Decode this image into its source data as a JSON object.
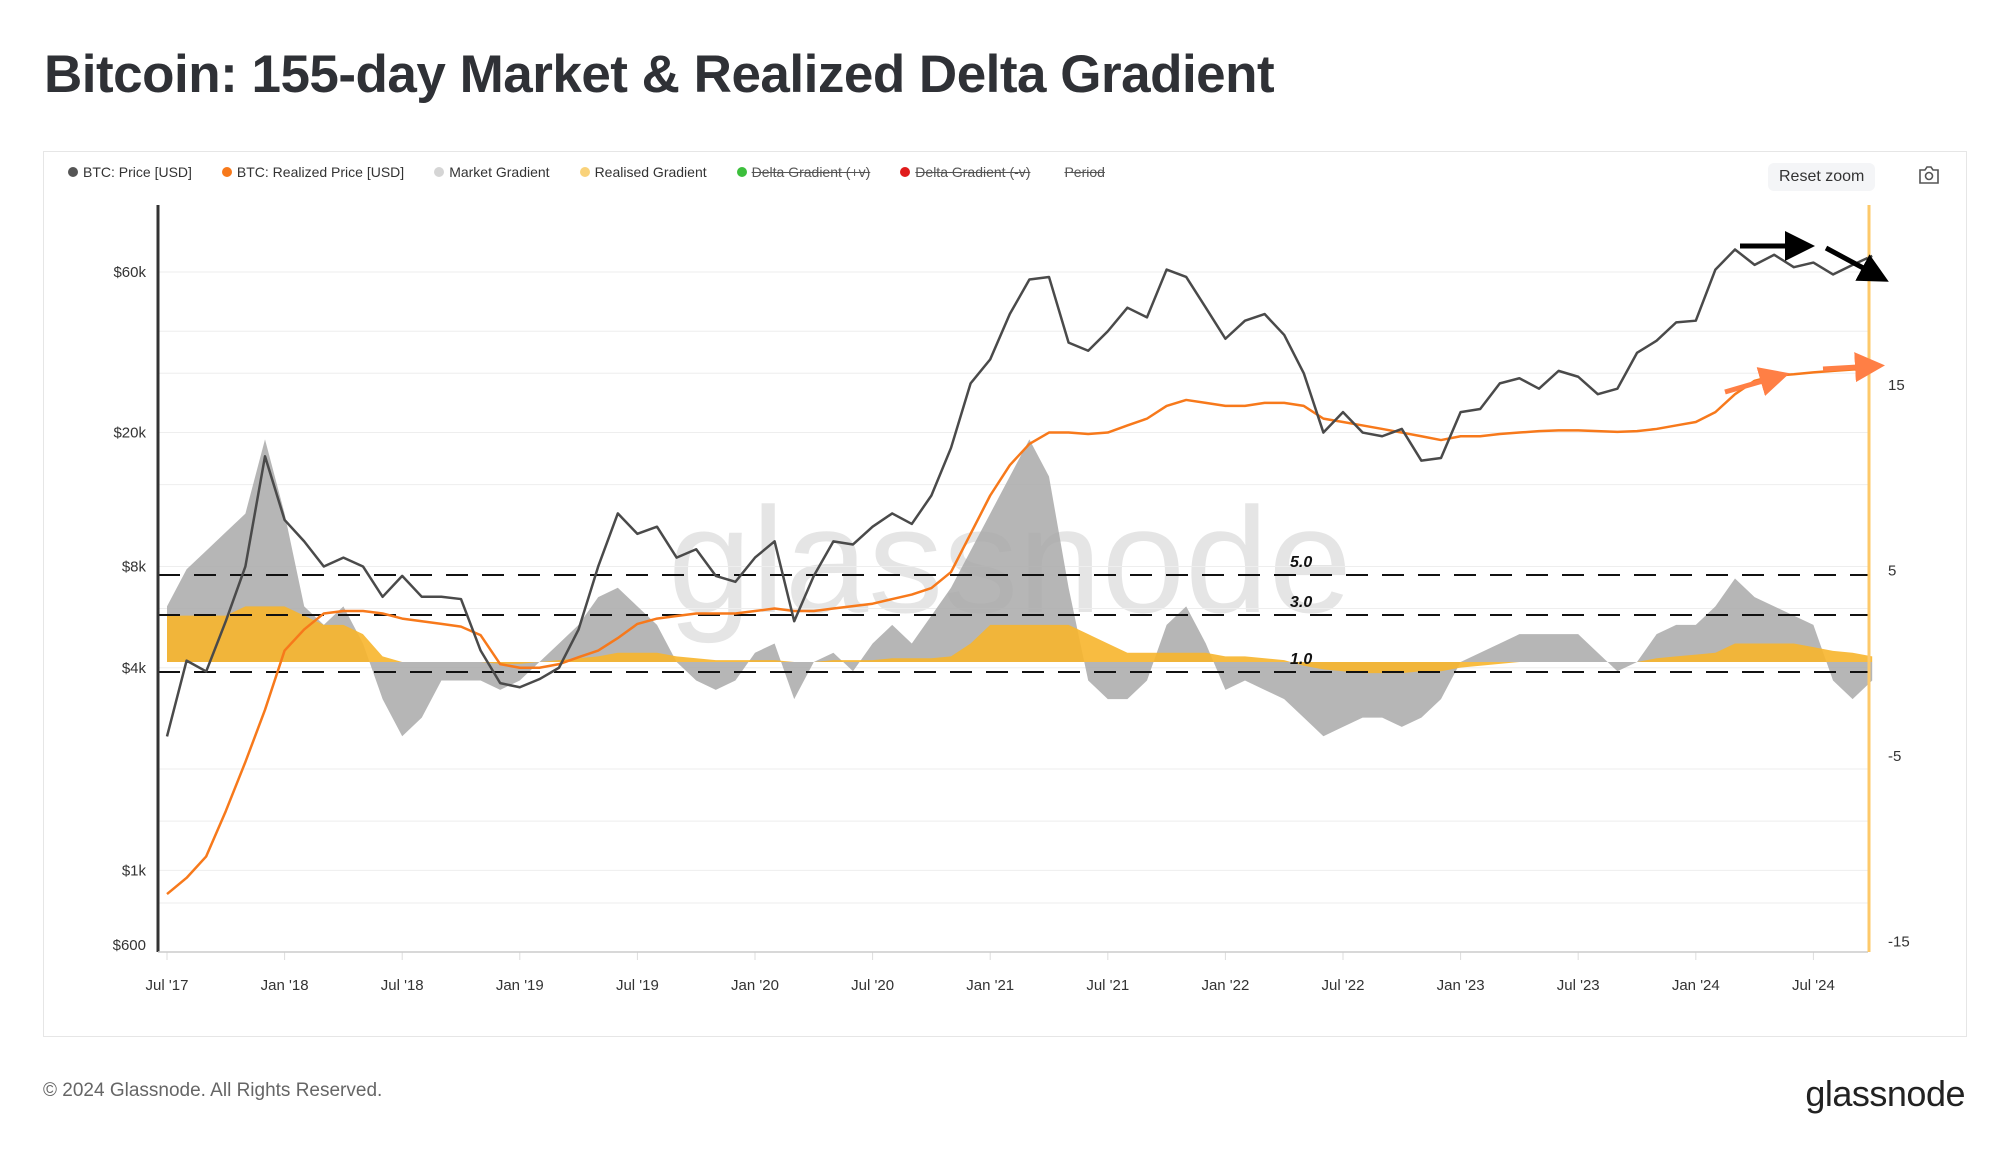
{
  "title": "Bitcoin: 155-day Market & Realized Delta Gradient",
  "legend": [
    {
      "label": "BTC: Price [USD]",
      "color": "#555555",
      "hidden": false
    },
    {
      "label": "BTC: Realized Price [USD]",
      "color": "#f7791b",
      "hidden": false
    },
    {
      "label": "Market Gradient",
      "color": "#d5d5d5",
      "hidden": false
    },
    {
      "label": "Realised Gradient",
      "color": "#f9c96b",
      "hidden": false
    },
    {
      "label": "Delta Gradient (+v)",
      "color": "#3cbf3c",
      "hidden": true
    },
    {
      "label": "Delta Gradient (-v)",
      "color": "#e01b1b",
      "hidden": true
    },
    {
      "label": "Period",
      "color": "#888888",
      "hidden": true
    }
  ],
  "controls": {
    "reset_zoom": "Reset zoom"
  },
  "footer": {
    "copyright": "© 2024 Glassnode. All Rights Reserved.",
    "logo": "glassnode"
  },
  "watermark": "glassnode",
  "chart_data": {
    "type": "line",
    "title": "Bitcoin: 155-day Market & Realized Delta Gradient",
    "x_start": "2017-07",
    "x_step": "month",
    "x_ticks": [
      "Jul '17",
      "Jan '18",
      "Jul '18",
      "Jan '19",
      "Jul '19",
      "Jan '20",
      "Jul '20",
      "Jan '21",
      "Jul '21",
      "Jan '22",
      "Jul '22",
      "Jan '23",
      "Jul '23",
      "Jan '24",
      "Jul '24"
    ],
    "y_left": {
      "scale": "log",
      "range": [
        600,
        60000
      ],
      "ticks": [
        {
          "v": 60000,
          "label": "$60k"
        },
        {
          "v": 20000,
          "label": "$20k"
        },
        {
          "v": 8000,
          "label": "$8k"
        },
        {
          "v": 4000,
          "label": "$4k"
        },
        {
          "v": 1000,
          "label": "$1k"
        },
        {
          "v": 600,
          "label": "$600"
        }
      ]
    },
    "y_right": {
      "scale": "linear",
      "range": [
        -15,
        20
      ],
      "ticks": [
        {
          "v": 15,
          "label": "15"
        },
        {
          "v": 5,
          "label": "5"
        },
        {
          "v": -5,
          "label": "-5"
        },
        {
          "v": -15,
          "label": "-15"
        }
      ]
    },
    "thresholds": [
      {
        "v": 5.0,
        "label": "5.0"
      },
      {
        "v": 3.0,
        "label": "3.0"
      },
      {
        "v": 1.0,
        "label": "1.0"
      }
    ],
    "series": [
      {
        "name": "BTC: Price [USD]",
        "axis": "left",
        "color": "#4a4a4a",
        "values": [
          2500,
          4200,
          3900,
          5500,
          8000,
          17000,
          11000,
          9500,
          8000,
          8500,
          8000,
          6500,
          7500,
          6500,
          6500,
          6400,
          4500,
          3600,
          3500,
          3700,
          4000,
          5200,
          8000,
          11500,
          10000,
          10500,
          8500,
          9000,
          7500,
          7200,
          8500,
          9500,
          5500,
          7500,
          9500,
          9300,
          10500,
          11500,
          10700,
          13000,
          18000,
          28000,
          33000,
          45000,
          57000,
          58000,
          37000,
          35000,
          40000,
          47000,
          44000,
          61000,
          58000,
          47000,
          38000,
          43000,
          45000,
          39000,
          30000,
          20000,
          23000,
          20000,
          19500,
          20500,
          16500,
          16800,
          23000,
          23500,
          28000,
          29000,
          27000,
          30500,
          29300,
          26000,
          27000,
          34500,
          37500,
          42500,
          43000,
          61000,
          70000,
          63000,
          67500,
          62000,
          64000,
          59000,
          63000,
          67000
        ]
      },
      {
        "name": "BTC: Realized Price [USD]",
        "axis": "left",
        "color": "#f7791b",
        "values": [
          850,
          950,
          1100,
          1500,
          2100,
          3000,
          4500,
          5200,
          5800,
          5900,
          5900,
          5800,
          5600,
          5500,
          5400,
          5300,
          5000,
          4100,
          4000,
          4000,
          4100,
          4300,
          4500,
          4900,
          5400,
          5600,
          5700,
          5800,
          5800,
          5800,
          5900,
          6000,
          5900,
          5900,
          6000,
          6100,
          6200,
          6400,
          6600,
          6900,
          7700,
          10000,
          13000,
          16000,
          18500,
          20000,
          20000,
          19800,
          20000,
          21000,
          22000,
          24000,
          25000,
          24500,
          24000,
          24000,
          24500,
          24500,
          24000,
          22000,
          21500,
          21000,
          20500,
          20000,
          19500,
          19000,
          19500,
          19500,
          19800,
          20000,
          20200,
          20300,
          20300,
          20200,
          20100,
          20200,
          20500,
          21000,
          21500,
          23000,
          26000,
          28500,
          29500,
          29800,
          30200,
          30500,
          30800,
          31000
        ]
      },
      {
        "name": "Market Gradient",
        "axis": "right",
        "color": "#b5b5b5",
        "values": [
          3,
          5,
          6,
          7,
          8,
          12,
          8,
          3,
          2,
          3,
          1,
          -2,
          -4,
          -3,
          -1,
          -1,
          -1,
          -1.5,
          -1,
          0,
          1,
          2,
          3.5,
          4,
          3,
          2,
          0,
          -1,
          -1.5,
          -1,
          0.5,
          1,
          -2,
          0,
          0.5,
          -0.5,
          1,
          2,
          1,
          2.5,
          4,
          6,
          8,
          10,
          12,
          10,
          4,
          -1,
          -2,
          -2,
          -1,
          2,
          3,
          1,
          -1.5,
          -1,
          -1.5,
          -2,
          -3,
          -4,
          -3.5,
          -3,
          -3,
          -3.5,
          -3,
          -2,
          0,
          0.5,
          1,
          1.5,
          1.5,
          1.5,
          1.5,
          0.5,
          -0.5,
          0,
          1.5,
          2,
          2,
          3,
          4.5,
          3.5,
          3,
          2.5,
          2,
          -1,
          -2,
          -1
        ]
      },
      {
        "name": "Realised Gradient",
        "axis": "right",
        "color": "#f7b52c",
        "values": [
          2.5,
          2.5,
          2.5,
          2.5,
          3,
          3,
          3,
          2.5,
          2,
          2,
          1.5,
          0.3,
          0,
          0,
          0,
          0,
          0,
          -0.1,
          -0.1,
          0,
          0.1,
          0.2,
          0.3,
          0.5,
          0.5,
          0.5,
          0.3,
          0.2,
          0.1,
          0.1,
          0.1,
          0.1,
          0,
          0,
          0.1,
          0.1,
          0.1,
          0.2,
          0.2,
          0.2,
          0.3,
          1,
          2,
          2,
          2,
          2,
          2,
          1.5,
          1,
          0.5,
          0.5,
          0.5,
          0.5,
          0.5,
          0.3,
          0.3,
          0.2,
          0.1,
          -0.2,
          -0.4,
          -0.5,
          -0.6,
          -0.6,
          -0.6,
          -0.5,
          -0.5,
          -0.3,
          -0.2,
          -0.1,
          0,
          0,
          0,
          0,
          0,
          0,
          0,
          0.2,
          0.3,
          0.4,
          0.5,
          1,
          1,
          1,
          1,
          0.8,
          0.6,
          0.5,
          0.3
        ]
      }
    ]
  }
}
